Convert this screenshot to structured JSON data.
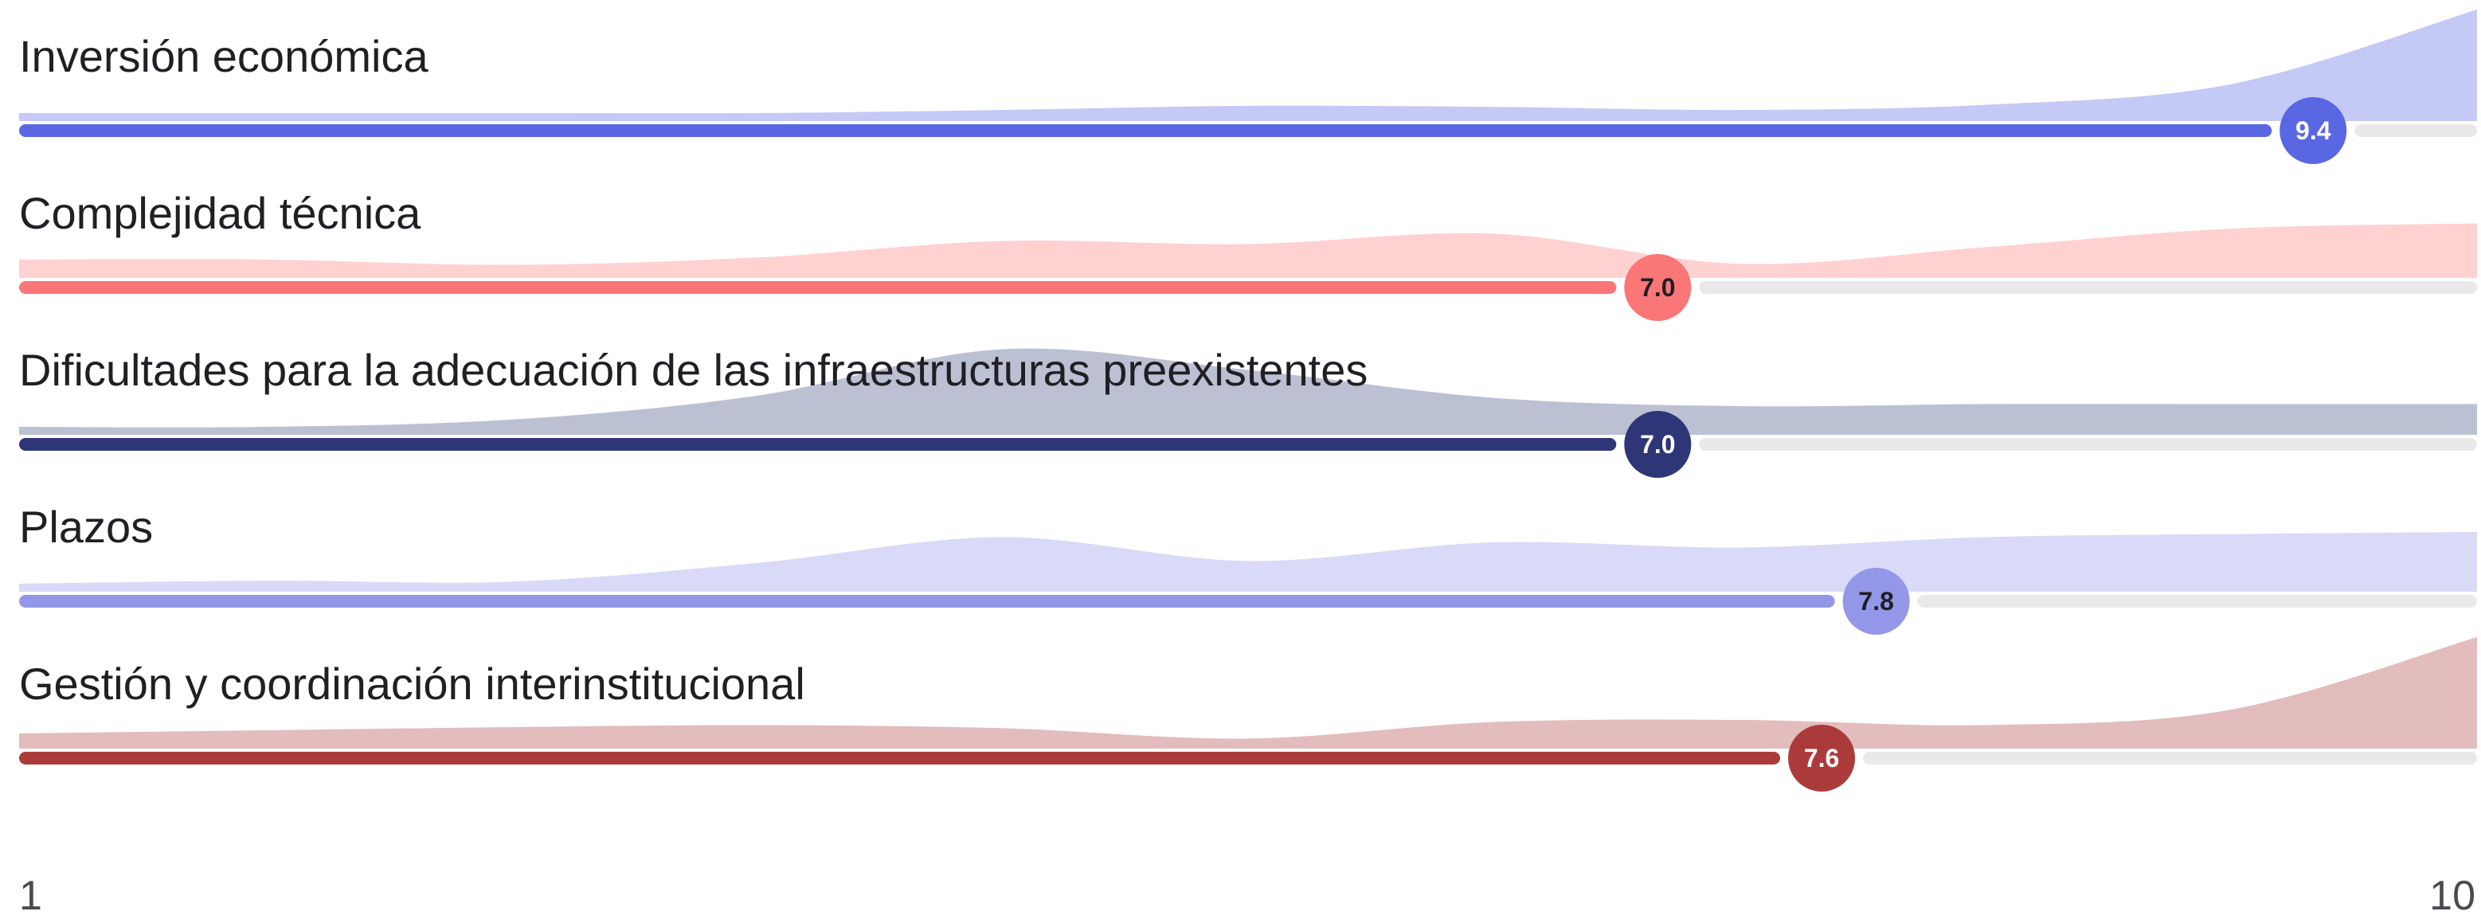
{
  "chart_data": {
    "type": "bar",
    "categories": [
      "Inversión económica",
      "Complejidad técnica",
      "Dificultades para la adecuación de las infraestructuras preexistentes",
      "Plazos",
      "Gestión y coordinación interinstitucional"
    ],
    "values": [
      9.4,
      7.0,
      7.0,
      7.8,
      7.6
    ],
    "value_labels": [
      "9.4",
      "7.0",
      "7.0",
      "7.8",
      "7.6"
    ],
    "xlim": [
      1,
      10
    ],
    "x_tick_labels": [
      "1",
      "10"
    ],
    "colors": [
      "#5a67e3",
      "#fb7677",
      "#2e3677",
      "#9496e8",
      "#ab3b3b"
    ],
    "area_colors": [
      "#c5c9f6",
      "#ffd1d1",
      "#bcc0d3",
      "#d9daf7",
      "#e3bcbd"
    ],
    "value_text_colors": [
      "#ffffff",
      "#1f1f24",
      "#ffffff",
      "#1f1f24",
      "#ffffff"
    ],
    "track_color": "#e9e9e9",
    "distributions": [
      [
        0,
        0,
        0,
        0,
        0.03,
        0.07,
        0.06,
        0.03,
        0.08,
        0.28,
        1.0
      ],
      [
        0.1,
        0.1,
        0.05,
        0.12,
        0.28,
        0.25,
        0.35,
        0.06,
        0.22,
        0.4,
        0.45
      ],
      [
        0,
        0,
        0.07,
        0.3,
        0.75,
        0.55,
        0.28,
        0.2,
        0.22,
        0.22,
        0.22
      ],
      [
        0,
        0.03,
        0.02,
        0.2,
        0.45,
        0.22,
        0.4,
        0.35,
        0.45,
        0.48,
        0.5
      ],
      [
        0.07,
        0.1,
        0.13,
        0.15,
        0.12,
        0.02,
        0.18,
        0.2,
        0.15,
        0.3,
        1.0
      ]
    ],
    "grid": false,
    "legend": false
  }
}
